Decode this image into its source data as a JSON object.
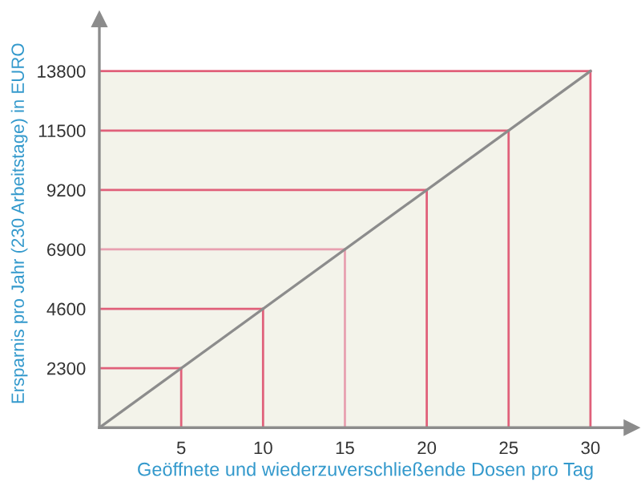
{
  "chart_data": {
    "type": "line",
    "xlabel": "Geöffnete und wiederzuverschließende Dosen pro Tag",
    "ylabel": "Ersparnis pro Jahr (230 Arbeitstage) in EURO",
    "xlim": [
      0,
      32.5
    ],
    "ylim": [
      0,
      15800
    ],
    "xticks": [
      5,
      10,
      15,
      20,
      25,
      30
    ],
    "yticks": [
      2300,
      4600,
      6900,
      9200,
      11500,
      13800
    ],
    "legend": false,
    "series": [
      {
        "color": "#8c8c8c",
        "x": [
          0,
          30
        ],
        "values": [
          0,
          13800
        ]
      }
    ],
    "ref_lines": [
      {
        "axis": "x",
        "value": 5,
        "color": "#e0607a"
      },
      {
        "axis": "x",
        "value": 10,
        "color": "#e0607a"
      },
      {
        "axis": "x",
        "value": 15,
        "color": "#e8a0b0"
      },
      {
        "axis": "x",
        "value": 20,
        "color": "#e0607a"
      },
      {
        "axis": "x",
        "value": 25,
        "color": "#e0607a"
      },
      {
        "axis": "x",
        "value": 30,
        "color": "#e0607a"
      },
      {
        "axis": "y",
        "value": 2300,
        "color": "#e0607a"
      },
      {
        "axis": "y",
        "value": 4600,
        "color": "#e0607a"
      },
      {
        "axis": "y",
        "value": 6900,
        "color": "#e8a0b0"
      },
      {
        "axis": "y",
        "value": 9200,
        "color": "#e0607a"
      },
      {
        "axis": "y",
        "value": 11500,
        "color": "#e0607a"
      },
      {
        "axis": "y",
        "value": 13800,
        "color": "#e0607a"
      }
    ]
  }
}
